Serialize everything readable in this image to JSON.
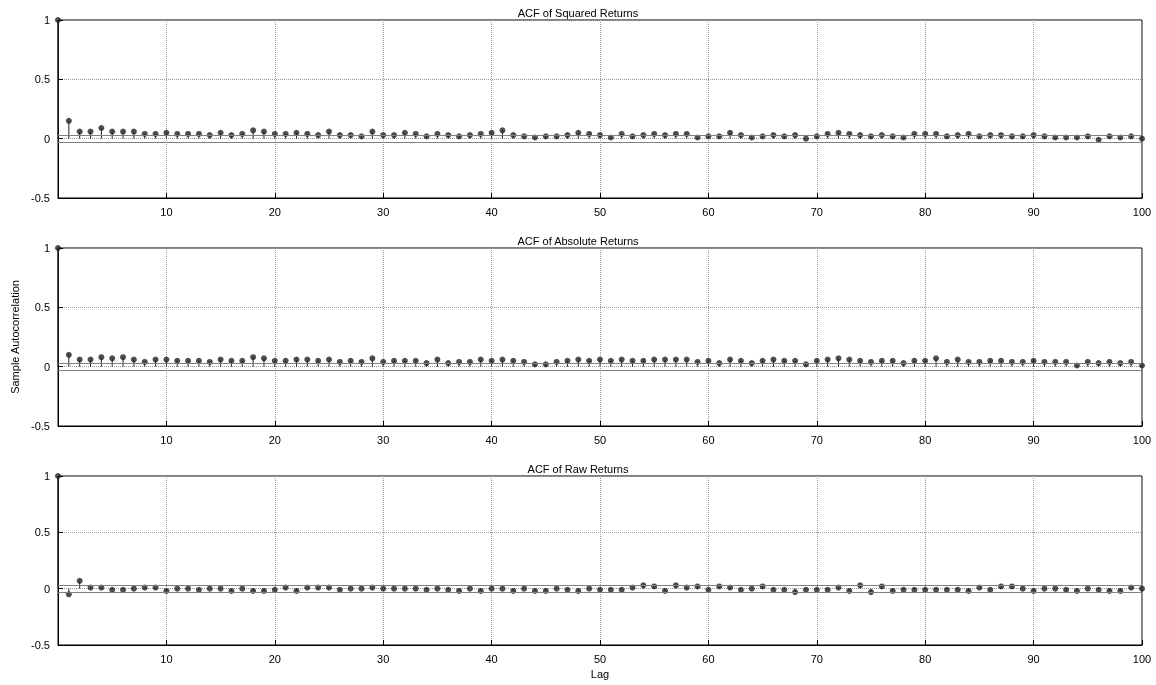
{
  "chart_data": [
    {
      "type": "lollipop",
      "title": "ACF of Squared Returns",
      "marker": "circle",
      "grid": true,
      "xlim": [
        0,
        100
      ],
      "xticks": [
        10,
        20,
        30,
        40,
        50,
        60,
        70,
        80,
        90,
        100
      ],
      "ylim": [
        -0.5,
        1
      ],
      "yticks": [
        -0.5,
        0,
        0.5,
        1
      ],
      "x": [
        0,
        1,
        2,
        3,
        4,
        5,
        6,
        7,
        8,
        9,
        10,
        11,
        12,
        13,
        14,
        15,
        16,
        17,
        18,
        19,
        20,
        21,
        22,
        23,
        24,
        25,
        26,
        27,
        28,
        29,
        30,
        31,
        32,
        33,
        34,
        35,
        36,
        37,
        38,
        39,
        40,
        41,
        42,
        43,
        44,
        45,
        46,
        47,
        48,
        49,
        50,
        51,
        52,
        53,
        54,
        55,
        56,
        57,
        58,
        59,
        60,
        61,
        62,
        63,
        64,
        65,
        66,
        67,
        68,
        69,
        70,
        71,
        72,
        73,
        74,
        75,
        76,
        77,
        78,
        79,
        80,
        81,
        82,
        83,
        84,
        85,
        86,
        87,
        88,
        89,
        90,
        91,
        92,
        93,
        94,
        95,
        96,
        97,
        98,
        99,
        100
      ],
      "series": [
        {
          "color": "#222222",
          "values": [
            1,
            0.15,
            0.06,
            0.06,
            0.09,
            0.06,
            0.06,
            0.06,
            0.04,
            0.04,
            0.05,
            0.04,
            0.04,
            0.04,
            0.03,
            0.05,
            0.03,
            0.04,
            0.07,
            0.06,
            0.04,
            0.04,
            0.05,
            0.04,
            0.03,
            0.06,
            0.03,
            0.03,
            0.02,
            0.06,
            0.03,
            0.03,
            0.05,
            0.04,
            0.02,
            0.04,
            0.03,
            0.02,
            0.03,
            0.04,
            0.05,
            0.07,
            0.03,
            0.02,
            0.01,
            0.02,
            0.02,
            0.03,
            0.05,
            0.04,
            0.03,
            0.01,
            0.04,
            0.02,
            0.03,
            0.04,
            0.03,
            0.04,
            0.04,
            0.01,
            0.02,
            0.02,
            0.05,
            0.03,
            0.01,
            0.02,
            0.03,
            0.02,
            0.03,
            0,
            0.02,
            0.04,
            0.05,
            0.04,
            0.03,
            0.02,
            0.03,
            0.02,
            0.01,
            0.04,
            0.04,
            0.04,
            0.02,
            0.03,
            0.04,
            0.02,
            0.03,
            0.03,
            0.02,
            0.02,
            0.03,
            0.02,
            0.01,
            0.01,
            0.01,
            0.02,
            -0.01,
            0.02,
            0.01,
            0.02,
            0
          ]
        }
      ],
      "ref_lines": [
        {
          "axis": "y",
          "value": 0.03,
          "color": "#808080"
        },
        {
          "axis": "y",
          "value": -0.03,
          "color": "#808080"
        }
      ]
    },
    {
      "type": "lollipop",
      "title": "ACF of Absolute Returns",
      "ylabel": "Sample Autocorrelation",
      "marker": "circle",
      "grid": true,
      "xlim": [
        0,
        100
      ],
      "xticks": [
        10,
        20,
        30,
        40,
        50,
        60,
        70,
        80,
        90,
        100
      ],
      "ylim": [
        -0.5,
        1
      ],
      "yticks": [
        -0.5,
        0,
        0.5,
        1
      ],
      "x": [
        0,
        1,
        2,
        3,
        4,
        5,
        6,
        7,
        8,
        9,
        10,
        11,
        12,
        13,
        14,
        15,
        16,
        17,
        18,
        19,
        20,
        21,
        22,
        23,
        24,
        25,
        26,
        27,
        28,
        29,
        30,
        31,
        32,
        33,
        34,
        35,
        36,
        37,
        38,
        39,
        40,
        41,
        42,
        43,
        44,
        45,
        46,
        47,
        48,
        49,
        50,
        51,
        52,
        53,
        54,
        55,
        56,
        57,
        58,
        59,
        60,
        61,
        62,
        63,
        64,
        65,
        66,
        67,
        68,
        69,
        70,
        71,
        72,
        73,
        74,
        75,
        76,
        77,
        78,
        79,
        80,
        81,
        82,
        83,
        84,
        85,
        86,
        87,
        88,
        89,
        90,
        91,
        92,
        93,
        94,
        95,
        96,
        97,
        98,
        99,
        100
      ],
      "series": [
        {
          "color": "#222222",
          "values": [
            1,
            0.1,
            0.06,
            0.06,
            0.08,
            0.07,
            0.08,
            0.06,
            0.04,
            0.06,
            0.06,
            0.05,
            0.05,
            0.05,
            0.04,
            0.06,
            0.05,
            0.05,
            0.08,
            0.07,
            0.05,
            0.05,
            0.06,
            0.06,
            0.05,
            0.06,
            0.04,
            0.05,
            0.04,
            0.07,
            0.04,
            0.05,
            0.05,
            0.05,
            0.03,
            0.06,
            0.03,
            0.04,
            0.04,
            0.06,
            0.05,
            0.06,
            0.05,
            0.04,
            0.02,
            0.02,
            0.04,
            0.05,
            0.06,
            0.05,
            0.06,
            0.05,
            0.06,
            0.05,
            0.05,
            0.06,
            0.06,
            0.06,
            0.06,
            0.04,
            0.05,
            0.03,
            0.06,
            0.05,
            0.03,
            0.05,
            0.06,
            0.05,
            0.05,
            0.02,
            0.05,
            0.06,
            0.07,
            0.06,
            0.05,
            0.04,
            0.05,
            0.05,
            0.03,
            0.05,
            0.05,
            0.07,
            0.04,
            0.06,
            0.04,
            0.04,
            0.05,
            0.05,
            0.04,
            0.04,
            0.05,
            0.04,
            0.04,
            0.04,
            0.01,
            0.04,
            0.03,
            0.04,
            0.03,
            0.04,
            0.01
          ]
        }
      ],
      "ref_lines": [
        {
          "axis": "y",
          "value": 0.03,
          "color": "#808080"
        },
        {
          "axis": "y",
          "value": -0.03,
          "color": "#808080"
        }
      ]
    },
    {
      "type": "lollipop",
      "title": "ACF of Raw Returns",
      "xlabel": "Lag",
      "marker": "circle",
      "grid": true,
      "xlim": [
        0,
        100
      ],
      "xticks": [
        10,
        20,
        30,
        40,
        50,
        60,
        70,
        80,
        90,
        100
      ],
      "ylim": [
        -0.5,
        1
      ],
      "yticks": [
        -0.5,
        0,
        0.5,
        1
      ],
      "x": [
        0,
        1,
        2,
        3,
        4,
        5,
        6,
        7,
        8,
        9,
        10,
        11,
        12,
        13,
        14,
        15,
        16,
        17,
        18,
        19,
        20,
        21,
        22,
        23,
        24,
        25,
        26,
        27,
        28,
        29,
        30,
        31,
        32,
        33,
        34,
        35,
        36,
        37,
        38,
        39,
        40,
        41,
        42,
        43,
        44,
        45,
        46,
        47,
        48,
        49,
        50,
        51,
        52,
        53,
        54,
        55,
        56,
        57,
        58,
        59,
        60,
        61,
        62,
        63,
        64,
        65,
        66,
        67,
        68,
        69,
        70,
        71,
        72,
        73,
        74,
        75,
        76,
        77,
        78,
        79,
        80,
        81,
        82,
        83,
        84,
        85,
        86,
        87,
        88,
        89,
        90,
        91,
        92,
        93,
        94,
        95,
        96,
        97,
        98,
        99,
        100
      ],
      "series": [
        {
          "color": "#222222",
          "values": [
            1,
            -0.05,
            0.07,
            0.01,
            0.01,
            -0.01,
            -0.01,
            0,
            0.01,
            0.01,
            -0.02,
            0,
            0,
            -0.01,
            0,
            0,
            -0.02,
            0,
            -0.02,
            -0.02,
            -0.01,
            0.01,
            -0.02,
            0.01,
            0.01,
            0.01,
            -0.01,
            0,
            0,
            0.01,
            0,
            0,
            0,
            0,
            -0.01,
            0,
            -0.01,
            -0.02,
            0,
            -0.02,
            0,
            0,
            -0.02,
            0,
            -0.02,
            -0.02,
            0,
            -0.01,
            -0.02,
            0,
            -0.01,
            -0.01,
            -0.01,
            0.01,
            0.03,
            0.02,
            -0.02,
            0.03,
            0.01,
            0.02,
            -0.01,
            0.02,
            0.01,
            -0.01,
            0,
            0.02,
            -0.01,
            -0.01,
            -0.03,
            -0.01,
            -0.01,
            -0.01,
            0.01,
            -0.02,
            0.03,
            -0.03,
            0.02,
            -0.02,
            -0.01,
            -0.01,
            -0.01,
            -0.01,
            -0.01,
            -0.01,
            -0.02,
            0.01,
            -0.01,
            0.02,
            0.02,
            0,
            -0.02,
            0,
            0,
            -0.01,
            -0.02,
            0,
            -0.01,
            -0.02,
            -0.02,
            0.01,
            0
          ]
        }
      ],
      "ref_lines": [
        {
          "axis": "y",
          "value": 0.03,
          "color": "#808080"
        },
        {
          "axis": "y",
          "value": -0.03,
          "color": "#808080"
        }
      ]
    }
  ]
}
